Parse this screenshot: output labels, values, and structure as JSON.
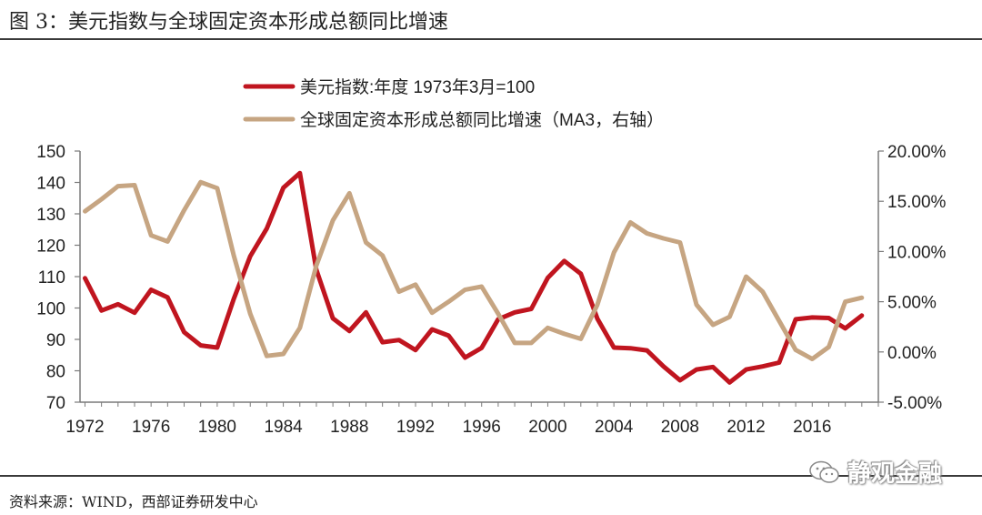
{
  "figure": {
    "title": "图 3：美元指数与全球固定资本形成总额同比增速",
    "source": "资料来源：WIND，西部证券研发中心",
    "watermark": "静观金融"
  },
  "chart_data": {
    "type": "line",
    "xlabel": "",
    "ylabel": "",
    "x_ticks": [
      "1972",
      "1976",
      "1980",
      "1984",
      "1988",
      "1992",
      "1996",
      "2000",
      "2004",
      "2008",
      "2012",
      "2016"
    ],
    "ylim_left": [
      70,
      150
    ],
    "y_ticks_left": [
      "70",
      "80",
      "90",
      "100",
      "110",
      "120",
      "130",
      "140",
      "150"
    ],
    "ylim_right": [
      -5,
      20
    ],
    "y_ticks_right": [
      "-5.00%",
      "0.00%",
      "5.00%",
      "10.00%",
      "15.00%",
      "20.00%"
    ],
    "grid": false,
    "legend_position": "top",
    "series": [
      {
        "name": "美元指数:年度 1973年3月=100",
        "axis": "left",
        "color": "#c0151f",
        "x": [
          1972,
          1973,
          1974,
          1975,
          1976,
          1977,
          1978,
          1979,
          1980,
          1981,
          1982,
          1983,
          1984,
          1985,
          1986,
          1987,
          1988,
          1989,
          1990,
          1991,
          1992,
          1993,
          1994,
          1995,
          1996,
          1997,
          1998,
          1999,
          2000,
          2001,
          2002,
          2003,
          2004,
          2005,
          2006,
          2007,
          2008,
          2009,
          2010,
          2011,
          2012,
          2013,
          2014,
          2015,
          2016,
          2017,
          2018,
          2019
        ],
        "values": [
          109.5,
          99.2,
          101.2,
          98.5,
          105.8,
          103.4,
          92.3,
          88.1,
          87.4,
          102.9,
          116.5,
          125.3,
          138.3,
          143.0,
          112.2,
          96.7,
          92.7,
          98.6,
          89.1,
          89.8,
          86.6,
          93.2,
          91.2,
          84.2,
          87.3,
          96.4,
          98.6,
          99.7,
          109.6,
          115.0,
          110.9,
          96.6,
          87.4,
          87.2,
          86.5,
          81.4,
          77.0,
          80.4,
          81.2,
          76.3,
          80.4,
          81.4,
          82.6,
          96.4,
          97.0,
          96.8,
          93.5,
          97.6
        ]
      },
      {
        "name": "全球固定资本形成总额同比增速（MA3，右轴）",
        "axis": "right",
        "color": "#c6a582",
        "x": [
          1972,
          1973,
          1974,
          1975,
          1976,
          1977,
          1978,
          1979,
          1980,
          1981,
          1982,
          1983,
          1984,
          1985,
          1986,
          1987,
          1988,
          1989,
          1990,
          1991,
          1992,
          1993,
          1994,
          1995,
          1996,
          1997,
          1998,
          1999,
          2000,
          2001,
          2002,
          2003,
          2004,
          2005,
          2006,
          2007,
          2008,
          2009,
          2010,
          2011,
          2012,
          2013,
          2014,
          2015,
          2016,
          2017,
          2018,
          2019
        ],
        "values": [
          14.0,
          15.2,
          16.5,
          16.6,
          11.6,
          11.0,
          14.1,
          16.9,
          16.3,
          9.6,
          3.8,
          -0.4,
          -0.2,
          2.4,
          8.6,
          13.1,
          15.8,
          10.9,
          9.6,
          6.0,
          6.7,
          3.9,
          5.0,
          6.2,
          6.5,
          3.8,
          0.9,
          0.9,
          2.4,
          1.8,
          1.3,
          4.7,
          9.9,
          12.9,
          11.8,
          11.3,
          10.9,
          4.7,
          2.7,
          3.5,
          7.5,
          6.0,
          3.1,
          0.2,
          -0.7,
          0.5,
          5.0,
          5.4
        ]
      }
    ]
  }
}
